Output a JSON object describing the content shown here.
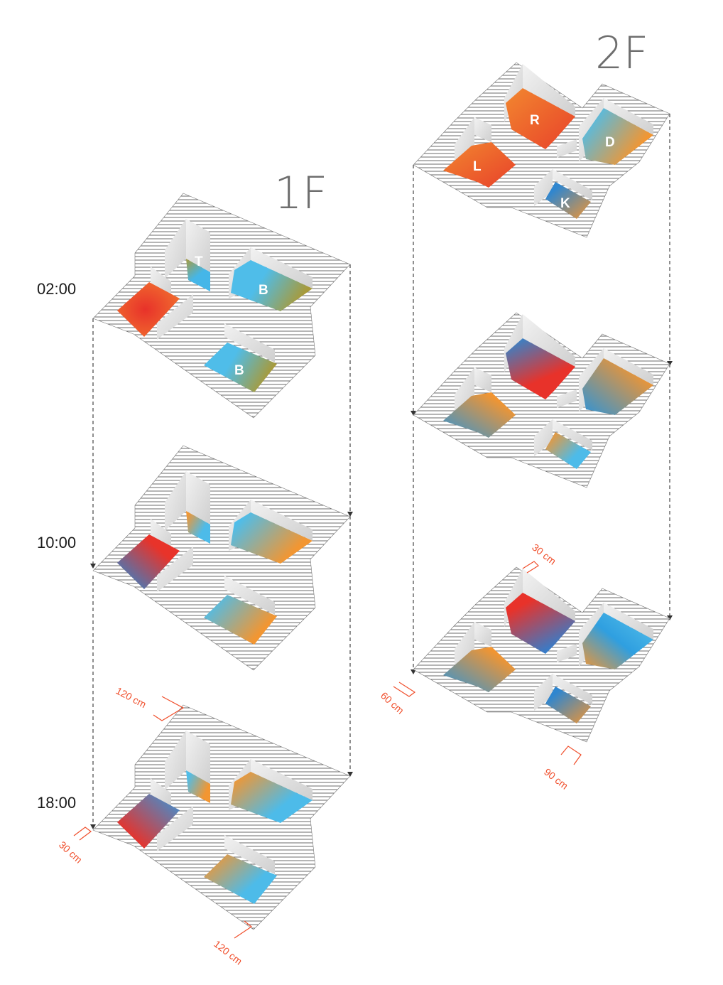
{
  "titles": {
    "first_floor": "1F",
    "second_floor": "2F"
  },
  "time_labels": [
    "02:00",
    "10:00",
    "18:00"
  ],
  "room_labels": {
    "first_floor": {
      "toilet": "T",
      "bath_upper": "B",
      "bath_lower": "B"
    },
    "second_floor": {
      "room": "R",
      "dining": "D",
      "living": "L",
      "kitchen": "K"
    }
  },
  "dimensions": {
    "first_floor_18_top": "120 cm",
    "first_floor_18_left": "30 cm",
    "first_floor_18_bottom": "120 cm",
    "second_floor_top": "30 cm",
    "second_floor_left": "60 cm",
    "second_floor_bottom": "90 cm"
  },
  "colors": {
    "red": "#e8322a",
    "orange": "#f29531",
    "blue": "#2f9fe0",
    "light_blue": "#59c3ea",
    "olive": "#a79a3a",
    "hatch": "#4a4a4a",
    "wall": "#e3e3e3",
    "dimension": "#f04e2b",
    "title": "#6e6e6e"
  }
}
